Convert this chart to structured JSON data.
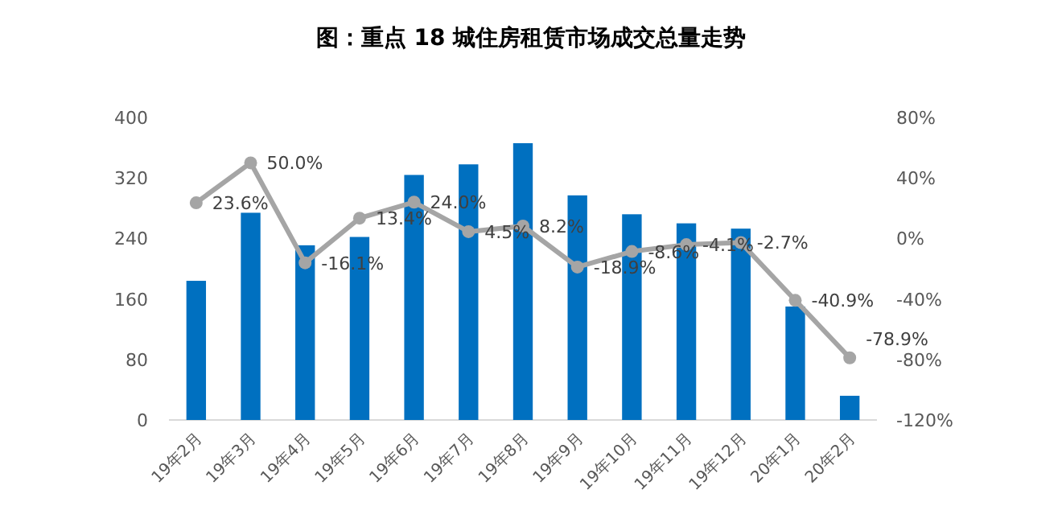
{
  "chart_data": {
    "type": "bar",
    "title": "图：重点 18 城住房租赁市场成交总量走势",
    "categories": [
      "19年2月",
      "19年3月",
      "19年4月",
      "19年5月",
      "19年6月",
      "19年7月",
      "19年8月",
      "19年9月",
      "19年10月",
      "19年11月",
      "19年12月",
      "20年1月",
      "20年2月"
    ],
    "series": [
      {
        "color": "#0070c0",
        "values": [
          184,
          274,
          231,
          242,
          324,
          338,
          366,
          297,
          272,
          260,
          253,
          150,
          32
        ]
      },
      {
        "type": "line",
        "axis": "y2",
        "color": "#a5a5a5",
        "values": [
          23.6,
          50.0,
          -16.1,
          13.4,
          24.0,
          4.5,
          8.2,
          -18.9,
          -8.6,
          -4.1,
          -2.7,
          -40.9,
          -78.9
        ],
        "value_labels": [
          "23.6%",
          "50.0%",
          "-16.1%",
          "13.4%",
          "24.0%",
          "4.5%",
          "8.2%",
          "-18.9%",
          "-8.6%",
          "-4.1%",
          "-2.7%",
          "-40.9%",
          "-78.9%"
        ]
      }
    ],
    "ylim": [
      0,
      400
    ],
    "yticks": [
      0,
      80,
      160,
      240,
      320,
      400
    ],
    "y2lim": [
      -120,
      80
    ],
    "y2ticks": [
      {
        "value": -120,
        "label": "-120%"
      },
      {
        "value": -80,
        "label": "-80%"
      },
      {
        "value": -40,
        "label": "-40%"
      },
      {
        "value": 0,
        "label": "0%"
      },
      {
        "value": 40,
        "label": "40%"
      },
      {
        "value": 80,
        "label": "80%"
      }
    ],
    "marker": "circle"
  }
}
